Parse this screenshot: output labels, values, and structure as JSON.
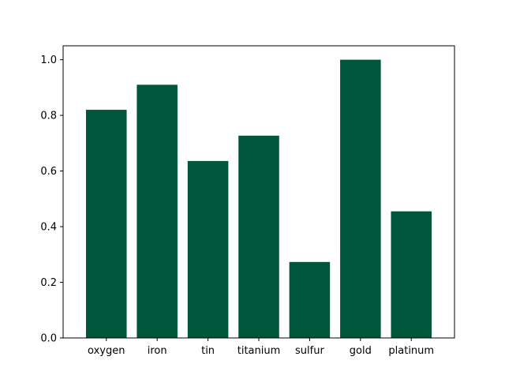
{
  "chart_data": {
    "type": "bar",
    "title": "",
    "xlabel": "",
    "ylabel": "",
    "categories": [
      "oxygen",
      "iron",
      "tin",
      "titanium",
      "sulfur",
      "gold",
      "platinum"
    ],
    "values": [
      0.82,
      0.91,
      0.636,
      0.727,
      0.273,
      1.0,
      0.455
    ],
    "ylim": [
      0,
      1.05
    ],
    "yticks": [
      0.0,
      0.2,
      0.4,
      0.6,
      0.8,
      1.0
    ],
    "ytick_labels": [
      "0.0",
      "0.2",
      "0.4",
      "0.6",
      "0.8",
      "1.0"
    ],
    "bar_color": "#00563b",
    "grid": false,
    "legend": "none"
  }
}
